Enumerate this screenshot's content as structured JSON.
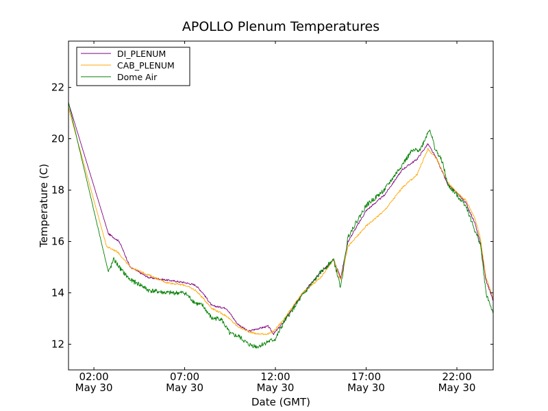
{
  "chart_data": {
    "type": "line",
    "title": "APOLLO Plenum Temperatures",
    "xlabel": "Date (GMT)",
    "ylabel": "Temperature (C)",
    "xlim": [
      0.6,
      24.0
    ],
    "ylim": [
      11.0,
      23.8
    ],
    "grid": false,
    "legend_position": "top-left",
    "x_ticks": [
      {
        "value": 2,
        "label": "02:00",
        "sublabel": "May 30"
      },
      {
        "value": 7,
        "label": "07:00",
        "sublabel": "May 30"
      },
      {
        "value": 12,
        "label": "12:00",
        "sublabel": "May 30"
      },
      {
        "value": 17,
        "label": "17:00",
        "sublabel": "May 30"
      },
      {
        "value": 22,
        "label": "22:00",
        "sublabel": "May 30"
      }
    ],
    "y_ticks": [
      {
        "value": 12,
        "label": "12"
      },
      {
        "value": 14,
        "label": "14"
      },
      {
        "value": 16,
        "label": "16"
      },
      {
        "value": 18,
        "label": "18"
      },
      {
        "value": 20,
        "label": "20"
      },
      {
        "value": 22,
        "label": "22"
      }
    ],
    "series": [
      {
        "name": "DI_PLENUM",
        "color": "#800080",
        "x": [
          0.6,
          2.8,
          3.4,
          4.0,
          5.0,
          6.0,
          7.0,
          7.6,
          8.0,
          8.5,
          9.3,
          9.9,
          10.5,
          11.0,
          11.6,
          11.9,
          12.5,
          13.5,
          14.5,
          15.2,
          15.6,
          16.0,
          17.0,
          18.0,
          19.0,
          19.8,
          20.4,
          20.9,
          21.5,
          22.0,
          22.5,
          23.0,
          23.3,
          23.6,
          24.0
        ],
        "values": [
          21.4,
          16.3,
          16.0,
          15.0,
          14.6,
          14.5,
          14.4,
          14.3,
          14.0,
          13.5,
          13.4,
          12.8,
          12.5,
          12.6,
          12.7,
          12.4,
          12.9,
          14.0,
          14.8,
          15.3,
          14.6,
          16.0,
          17.2,
          17.8,
          18.8,
          19.2,
          19.8,
          19.2,
          18.2,
          17.9,
          17.5,
          16.7,
          15.9,
          14.5,
          13.7
        ]
      },
      {
        "name": "CAB_PLENUM",
        "color": "#ffa500",
        "x": [
          0.6,
          2.7,
          3.3,
          4.0,
          5.0,
          6.0,
          7.0,
          7.6,
          8.0,
          8.5,
          9.3,
          9.9,
          10.5,
          11.0,
          11.6,
          11.9,
          12.5,
          13.5,
          14.5,
          15.2,
          15.6,
          16.0,
          17.0,
          18.0,
          19.0,
          19.8,
          20.4,
          20.9,
          21.5,
          22.0,
          22.5,
          23.0,
          23.3,
          23.6,
          24.0
        ],
        "values": [
          21.2,
          15.8,
          15.6,
          15.0,
          14.7,
          14.4,
          14.3,
          14.1,
          13.8,
          13.4,
          13.1,
          12.7,
          12.5,
          12.4,
          12.4,
          12.5,
          13.0,
          14.0,
          14.6,
          15.3,
          14.5,
          15.8,
          16.6,
          17.2,
          18.1,
          18.6,
          19.6,
          19.2,
          18.3,
          17.9,
          17.6,
          16.9,
          16.1,
          14.6,
          13.8
        ]
      },
      {
        "name": "Dome Air",
        "color": "#008000",
        "x": [
          0.6,
          2.8,
          3.1,
          3.5,
          4.0,
          4.6,
          5.0,
          6.0,
          7.0,
          7.6,
          8.0,
          8.5,
          9.0,
          9.5,
          10.0,
          10.5,
          11.0,
          11.6,
          12.0,
          12.5,
          13.5,
          14.5,
          15.2,
          15.6,
          16.0,
          17.0,
          18.0,
          18.8,
          19.5,
          20.0,
          20.5,
          20.8,
          21.2,
          21.5,
          22.0,
          22.5,
          23.0,
          23.3,
          23.6,
          24.0
        ],
        "values": [
          21.4,
          14.8,
          15.3,
          14.9,
          14.5,
          14.3,
          14.1,
          14.0,
          14.0,
          13.6,
          13.5,
          13.0,
          13.0,
          12.4,
          12.3,
          12.0,
          11.9,
          12.1,
          12.2,
          12.9,
          13.9,
          14.8,
          15.3,
          14.2,
          16.2,
          17.4,
          18.0,
          18.8,
          19.5,
          19.6,
          20.4,
          19.6,
          19.1,
          18.2,
          17.8,
          17.4,
          16.4,
          15.9,
          14.0,
          13.2
        ]
      }
    ]
  }
}
